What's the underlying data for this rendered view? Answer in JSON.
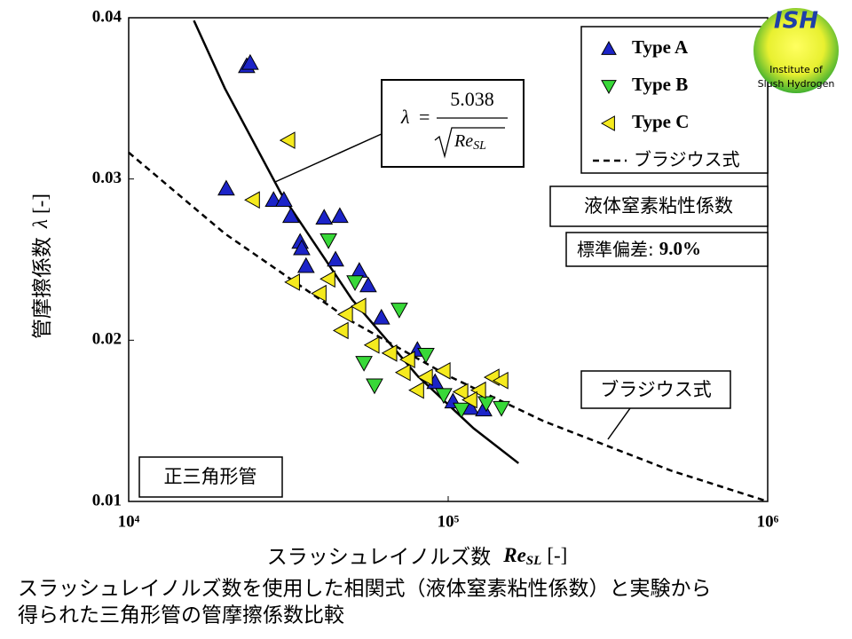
{
  "chart_data": {
    "type": "scatter",
    "xscale": "log",
    "x_label": {
      "text": "スラッシュレイノルズ数",
      "symbol": "Re",
      "sub": "SL",
      "unit": "[-]"
    },
    "y_label": {
      "text": "管摩擦係数",
      "symbol": "λ",
      "unit": "[-]"
    },
    "xlim": [
      10000,
      1000000
    ],
    "xticks": [
      {
        "value": 10000,
        "label": "10⁴"
      },
      {
        "value": 100000,
        "label": "10⁵"
      },
      {
        "value": 1000000,
        "label": "10⁶"
      }
    ],
    "ylim": [
      0.01,
      0.04
    ],
    "yticks": [
      0.01,
      0.02,
      0.03,
      0.04
    ],
    "grid": false,
    "legend": "top-right",
    "series": [
      {
        "name": "Type A",
        "marker": "triangle-up",
        "color": "#1c24c8",
        "x": [
          23400,
          24000,
          20200,
          28400,
          30600,
          32200,
          34400,
          34800,
          35900,
          40900,
          45800,
          44400,
          52700,
          56200,
          61800,
          80100,
          91000,
          103500,
          117400,
          129200
        ],
        "values": [
          0.037,
          0.0372,
          0.0294,
          0.0287,
          0.0287,
          0.0277,
          0.0261,
          0.0257,
          0.0246,
          0.0276,
          0.0277,
          0.025,
          0.0243,
          0.0234,
          0.0214,
          0.0194,
          0.0174,
          0.0162,
          0.0158,
          0.0157
        ]
      },
      {
        "name": "Type B",
        "marker": "triangle-down",
        "color": "#38d838",
        "x": [
          42200,
          51100,
          54500,
          58800,
          70300,
          85200,
          96800,
          110000,
          131600,
          146800
        ],
        "values": [
          0.0262,
          0.0236,
          0.0186,
          0.0172,
          0.0219,
          0.0191,
          0.0166,
          0.0157,
          0.0161,
          0.0158
        ]
      },
      {
        "name": "Type C",
        "marker": "triangle-left",
        "color": "#f5ea1e",
        "x": [
          31600,
          24500,
          32700,
          42200,
          39600,
          47900,
          46400,
          52700,
          58000,
          65900,
          72600,
          75000,
          85200,
          96800,
          110000,
          125000,
          137700,
          146800,
          117400,
          80000
        ],
        "values": [
          0.0324,
          0.0287,
          0.0236,
          0.0238,
          0.0229,
          0.0216,
          0.0206,
          0.0221,
          0.0197,
          0.0192,
          0.018,
          0.0188,
          0.0177,
          0.0181,
          0.0168,
          0.0169,
          0.0177,
          0.0175,
          0.0163,
          0.0169
        ]
      },
      {
        "name": "ブラジウス式",
        "line": "dashed",
        "color": "#000000",
        "x": [
          10000,
          20000,
          50000,
          100000,
          200000,
          500000,
          1000000
        ],
        "values": [
          0.03164,
          0.02661,
          0.02116,
          0.01779,
          0.01496,
          0.0119,
          0.01
        ]
      },
      {
        "line": "solid",
        "color": "#000000",
        "x": [
          16000,
          20000,
          30000,
          50000,
          80000,
          120000,
          166000
        ],
        "values": [
          0.03983,
          0.03562,
          0.02909,
          0.02253,
          0.01781,
          0.01454,
          0.01237
        ]
      }
    ],
    "formula": {
      "lhs": "λ",
      "eq": "=",
      "numerator": "5.038",
      "denominator": "Re",
      "denominator_sub": "SL"
    },
    "annotations": {
      "fluid": "液体窒素粘性係数",
      "std_label": "標準偏差:",
      "std_value": "9.0%",
      "shape": "正三角形管",
      "blasius": "ブラジウス式"
    },
    "logo": {
      "abbr": "ISH",
      "line1": "Institute of",
      "line2": "Slush Hydrogen"
    },
    "caption": [
      "スラッシュレイノルズ数を使用した相関式（液体窒素粘性係数）と実験から",
      "得られた三角形管の管摩擦係数比較"
    ]
  }
}
